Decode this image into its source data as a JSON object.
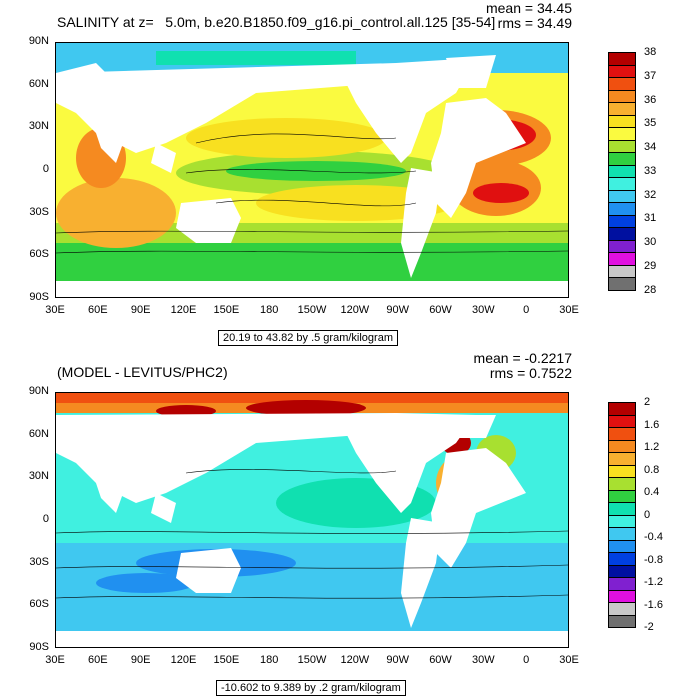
{
  "top": {
    "title": "SALINITY at z=   5.0m, b.e20.B1850.f09_g16.pi_control.all.125 [35-54]",
    "mean": "mean = 34.45",
    "rms": "rms = 34.49",
    "range": "20.19 to 43.82 by .5 gram/kilogram",
    "colorbar_labels": [
      "38",
      "37",
      "36",
      "35",
      "34",
      "33",
      "32",
      "31",
      "30",
      "29",
      "28"
    ],
    "colorbar_colors": [
      "#b30000",
      "#e01010",
      "#f05010",
      "#f58a20",
      "#f8b030",
      "#f8e020",
      "#fafa40",
      "#a8e030",
      "#30d040",
      "#10e0b0",
      "#40f0e0",
      "#40c8f0",
      "#2090f0",
      "#0040e0",
      "#0010a0",
      "#8020d0",
      "#e010e0",
      "#c8c8c8",
      "#707070"
    ]
  },
  "bottom": {
    "title": "(MODEL - LEVITUS/PHC2)",
    "mean": "mean = -0.2217",
    "rms": "rms = 0.7522",
    "range": "-10.602 to 9.389 by .2 gram/kilogram",
    "colorbar_labels": [
      "2",
      "1.6",
      "1.2",
      "0.8",
      "0.4",
      "0",
      "-0.4",
      "-0.8",
      "-1.2",
      "-1.6",
      "-2"
    ],
    "colorbar_colors": [
      "#b30000",
      "#e01010",
      "#f05010",
      "#f58a20",
      "#f8b030",
      "#f8e020",
      "#a8e030",
      "#30d040",
      "#10e0b0",
      "#40f0e0",
      "#40c8f0",
      "#2090f0",
      "#0040e0",
      "#0010a0",
      "#8020d0",
      "#e010e0",
      "#c8c8c8",
      "#707070"
    ]
  },
  "lat_labels": [
    "90N",
    "60N",
    "30N",
    "0",
    "30S",
    "60S",
    "90S"
  ],
  "lon_labels": [
    "30E",
    "60E",
    "90E",
    "120E",
    "150E",
    "180",
    "150W",
    "120W",
    "90W",
    "60W",
    "30W",
    "0",
    "30E"
  ]
}
